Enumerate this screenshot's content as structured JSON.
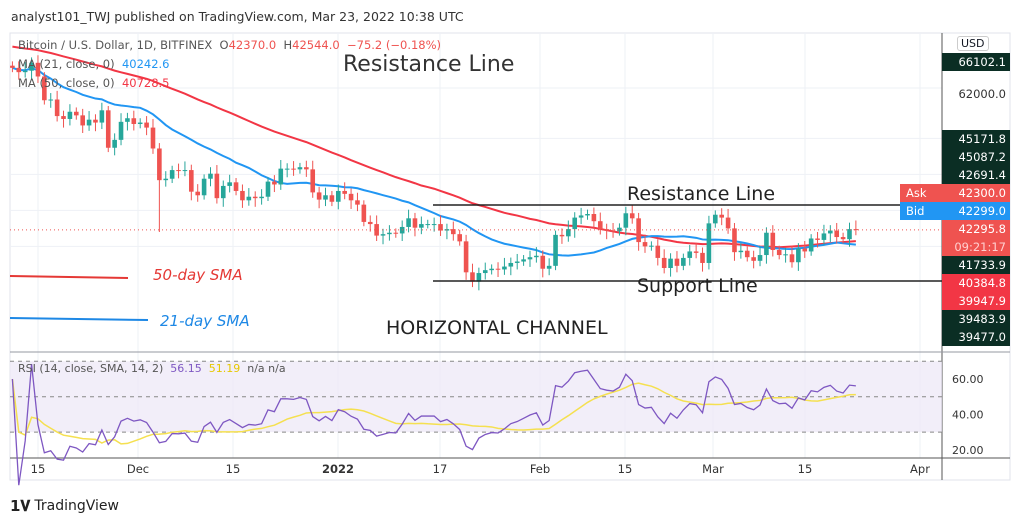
{
  "header": "analyst101_TWJ published on TradingView.com, Mar 23, 2022 10:38 UTC",
  "legend": {
    "symbol": "Bitcoin / U.S. Dollar, 1D, BITFINEX",
    "o_label": "O",
    "o": "42370.0",
    "h_label": "H",
    "h": "42544.0",
    "change": "−75.2 (−0.18%)",
    "ma21_label": "MA (21, close, 0)",
    "ma21": "40242.6",
    "ma50_label": "MA (50, close, 0)",
    "ma50": "40728.5"
  },
  "currency": "USD",
  "price_labels": [
    {
      "text": "66102.1",
      "color": "#0b2e24"
    },
    {
      "text": "62000.0",
      "color": "none"
    },
    {
      "text": "45171.8",
      "color": "#0b2e24"
    },
    {
      "text": "45087.2",
      "color": "#0b2e24"
    },
    {
      "text": "42691.4",
      "color": "#0b2e24"
    },
    {
      "text": "42300.0",
      "prefix": "Ask",
      "color": "#ef5350"
    },
    {
      "text": "42299.0",
      "prefix": "Bid",
      "color": "#2196f3"
    },
    {
      "text": "42295.8",
      "color": "#ef5350"
    },
    {
      "text": "09:21:17",
      "color": "#ef5350"
    },
    {
      "text": "41733.9",
      "color": "#0b2e24"
    },
    {
      "text": "40384.8",
      "color": "#f23645"
    },
    {
      "text": "39947.9",
      "color": "#f23645"
    },
    {
      "text": "39483.9",
      "color": "#0b2e24"
    },
    {
      "text": "39477.0",
      "color": "#0b2e24"
    }
  ],
  "annotations": {
    "resistance_top": "Resistance Line",
    "resistance": "Resistance Line",
    "support": "Support Line",
    "channel": "HORIZONTAL CHANNEL",
    "sma50": "50-day SMA",
    "sma21": "21-day SMA"
  },
  "rsi": {
    "label": "RSI (14, close, SMA, 14, 2)",
    "value": "56.15",
    "sma": "51.19",
    "na1": "n/a",
    "na2": "n/a",
    "ticks": [
      "60.00",
      "40.00",
      "20.00"
    ]
  },
  "time_axis": [
    "15",
    "Dec",
    "15",
    "2022",
    "17",
    "Feb",
    "15",
    "Mar",
    "15",
    "Apr"
  ],
  "brand": "TradingView",
  "colors": {
    "up": "#26a69a",
    "down": "#ef5350",
    "ma21": "#2196f3",
    "ma50": "#f23645",
    "rsi": "#7e57c2",
    "rsi_sma": "#f5e050"
  },
  "chart_data": {
    "type": "candlestick",
    "start_date": "2021-11-11",
    "end_date": "2022-03-23",
    "interval": "1D",
    "ylim": [
      33000,
      70000
    ],
    "closes": [
      64800,
      64200,
      64400,
      65500,
      63600,
      60300,
      60400,
      58100,
      57700,
      58700,
      58200,
      56800,
      57600,
      57200,
      58900,
      53700,
      54800,
      57300,
      57800,
      57000,
      57200,
      56500,
      53600,
      49200,
      49400,
      50600,
      50500,
      50600,
      47600,
      47100,
      49400,
      50100,
      46700,
      48400,
      48900,
      47700,
      46400,
      46900,
      46700,
      46900,
      49000,
      48600,
      50800,
      50800,
      50700,
      51000,
      50700,
      47500,
      46500,
      47100,
      46200,
      47700,
      47300,
      46400,
      45800,
      43400,
      43100,
      41500,
      41700,
      41900,
      41800,
      42700,
      43900,
      42600,
      43100,
      43100,
      43100,
      42200,
      42400,
      41700,
      40700,
      36400,
      35100,
      36300,
      36700,
      36900,
      36800,
      37200,
      37700,
      37900,
      38200,
      38500,
      38700,
      36900,
      37300,
      41600,
      41400,
      42400,
      44000,
      44300,
      44500,
      43500,
      42400,
      42200,
      42100,
      42600,
      44600,
      43900,
      40600,
      40000,
      40100,
      38400,
      37000,
      38300,
      37300,
      38400,
      39300,
      39100,
      37700,
      43200,
      44400,
      44000,
      42500,
      39200,
      39400,
      38500,
      38000,
      38800,
      41900,
      39500,
      38800,
      38900,
      37800,
      39700,
      39300,
      41100,
      40900,
      41800,
      42200,
      41300,
      41000,
      42400,
      42300
    ],
    "resistance": 45750,
    "support": 35200,
    "rsi_levels": [
      70,
      50,
      30
    ]
  }
}
